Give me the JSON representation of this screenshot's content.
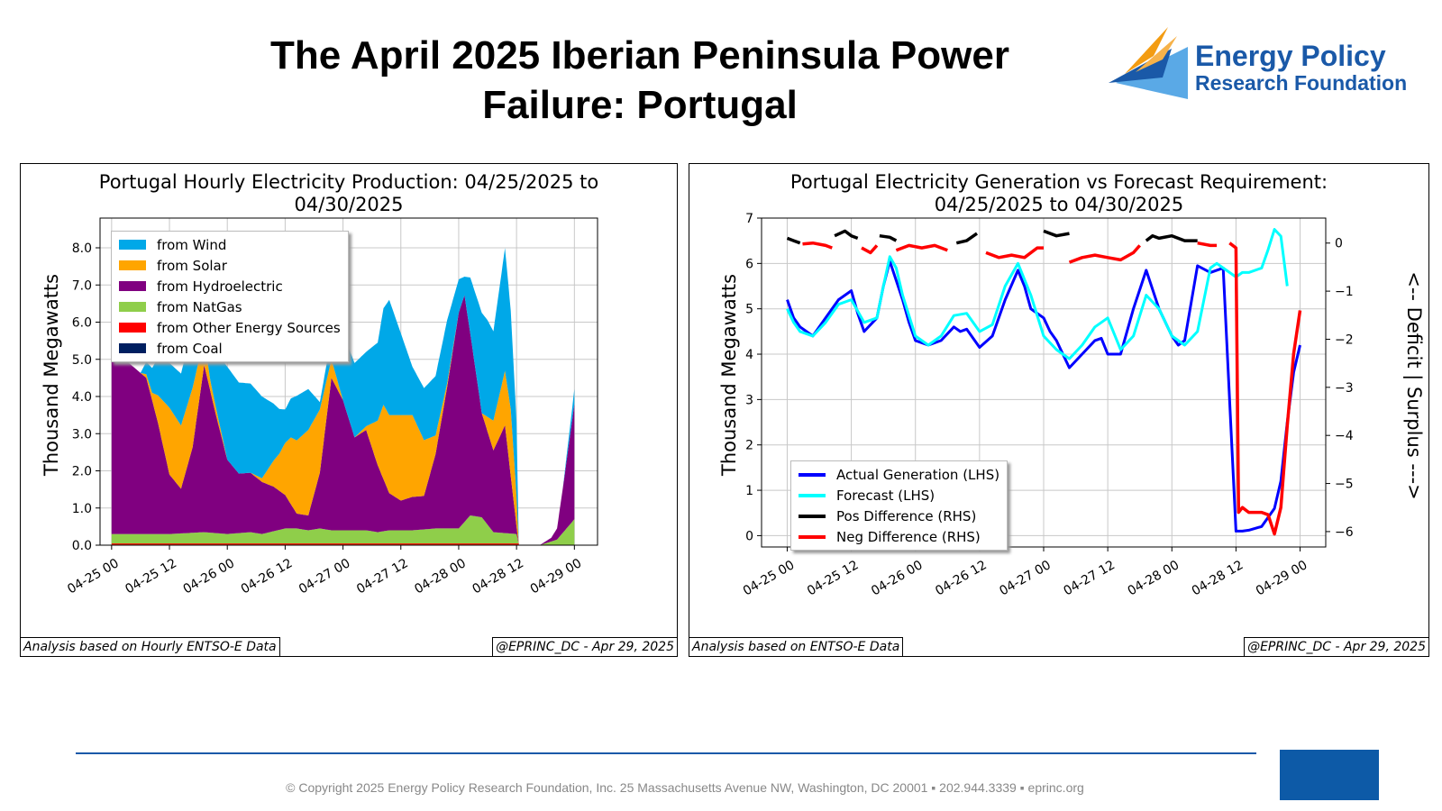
{
  "page": {
    "title_line1": "The April 2025 Iberian Peninsula Power",
    "title_line2": "Failure: Portugal",
    "logo_line1": "Energy Policy",
    "logo_line2": "Research Foundation",
    "copyright": "© Copyright 2025 Energy Policy Research Foundation, Inc. 25 Massachusetts Avenue NW, Washington, DC 20001 ▪ 202.944.3339 ▪ eprinc.org",
    "colors": {
      "brand_blue": "#1a59a8",
      "brand_orange": "#f39c12",
      "brand_light_blue": "#5aa9e6"
    }
  },
  "chart_data": [
    {
      "type": "area",
      "stacked": true,
      "title_line1": "Portugal Hourly Electricity Production: 04/25/2025 to",
      "title_line2": "04/30/2025",
      "ylabel": "Thousand Megawatts",
      "xlabel": "",
      "ylim": [
        0,
        8.8
      ],
      "xlim": [
        -0.1,
        4.2
      ],
      "yticks": [
        0.0,
        1.0,
        2.0,
        3.0,
        4.0,
        5.0,
        6.0,
        7.0,
        8.0
      ],
      "ytick_labels": [
        "0.0",
        "1.0",
        "2.0",
        "3.0",
        "4.0",
        "5.0",
        "6.0",
        "7.0",
        "8.0"
      ],
      "xticks": [
        0,
        0.5,
        1,
        1.5,
        2,
        2.5,
        3,
        3.5,
        4
      ],
      "xtick_labels": [
        "04-25 00",
        "04-25 12",
        "04-26 00",
        "04-26 12",
        "04-27 00",
        "04-27 12",
        "04-28 00",
        "04-28 12",
        "04-29 00"
      ],
      "x_unit": "days since 04-25 00",
      "grid": true,
      "legend_position": "top-left",
      "footer_left": "Analysis based on Hourly ENTSO-E Data",
      "footer_right": "@EPRINC_DC - Apr 29, 2025",
      "series": [
        {
          "name": "from NatGas",
          "color": "#8fce4a",
          "x": [
            0,
            0.5,
            0.8,
            1.0,
            1.2,
            1.3,
            1.5,
            1.6,
            1.7,
            1.8,
            1.9,
            2.0,
            2.2,
            2.3,
            2.4,
            2.6,
            2.8,
            3.0,
            3.1,
            3.2,
            3.3,
            3.5,
            3.52,
            3.7,
            3.85,
            4.0
          ],
          "y": [
            0.3,
            0.3,
            0.35,
            0.3,
            0.35,
            0.3,
            0.45,
            0.45,
            0.4,
            0.45,
            0.4,
            0.4,
            0.4,
            0.35,
            0.4,
            0.4,
            0.45,
            0.45,
            0.8,
            0.75,
            0.35,
            0.3,
            0.0,
            0.0,
            0.15,
            0.7
          ]
        },
        {
          "name": "from Hydroelectric",
          "color": "#800080",
          "x": [
            0,
            0.3,
            0.4,
            0.5,
            0.6,
            0.7,
            0.8,
            0.9,
            1.0,
            1.1,
            1.2,
            1.3,
            1.4,
            1.5,
            1.6,
            1.7,
            1.8,
            1.9,
            2.0,
            2.1,
            2.2,
            2.3,
            2.4,
            2.5,
            2.6,
            2.7,
            2.8,
            2.9,
            3.0,
            3.05,
            3.1,
            3.2,
            3.3,
            3.4,
            3.5,
            3.52,
            3.7,
            3.75,
            3.8,
            3.85,
            3.9,
            4.0
          ],
          "y": [
            5.0,
            4.2,
            3.0,
            1.6,
            1.2,
            2.3,
            4.5,
            3.2,
            2.0,
            1.6,
            1.6,
            1.4,
            1.2,
            0.9,
            0.4,
            0.4,
            1.5,
            4.1,
            3.5,
            2.5,
            2.7,
            1.8,
            1.0,
            0.8,
            0.9,
            0.9,
            2.0,
            3.8,
            5.8,
            6.1,
            4.9,
            2.8,
            2.2,
            2.9,
            0.2,
            0.0,
            0.0,
            0.05,
            0.1,
            0.3,
            1.2,
            3.1
          ]
        },
        {
          "name": "from Solar",
          "color": "#ffa500",
          "x": [
            0,
            0.25,
            0.35,
            0.5,
            0.7,
            0.85,
            1.0,
            1.1,
            1.2,
            1.3,
            1.45,
            1.55,
            1.7,
            1.8,
            1.9,
            2.0,
            2.1,
            2.2,
            2.3,
            2.35,
            2.5,
            2.6,
            2.7,
            2.8,
            2.9,
            3.0,
            3.2,
            3.3,
            3.45,
            3.5,
            3.52,
            4.0
          ],
          "y": [
            0,
            0,
            0.2,
            1.8,
            1.6,
            0.3,
            0,
            0,
            0,
            0.1,
            1.0,
            1.8,
            2.3,
            1.7,
            0.5,
            0,
            0,
            0.1,
            1.2,
            2.0,
            2.3,
            2.2,
            1.5,
            0.5,
            0.1,
            0,
            0,
            0.8,
            1.8,
            0.8,
            0,
            0
          ]
        },
        {
          "name": "from Wind",
          "color": "#00a8e8",
          "x": [
            0,
            0.25,
            0.4,
            0.5,
            0.7,
            0.8,
            0.9,
            1.0,
            1.2,
            1.3,
            1.45,
            1.5,
            1.6,
            1.7,
            1.8,
            1.9,
            2.0,
            2.1,
            2.2,
            2.3,
            2.4,
            2.5,
            2.6,
            2.7,
            2.8,
            2.9,
            3.0,
            3.05,
            3.1,
            3.2,
            3.25,
            3.3,
            3.4,
            3.5,
            3.52,
            3.7,
            3.85,
            3.9,
            4.0
          ],
          "y": [
            0,
            0,
            1.0,
            1.2,
            1.6,
            1.2,
            1.5,
            2.5,
            2.4,
            2.2,
            1.2,
            0.9,
            1.2,
            1.1,
            0.2,
            0.6,
            1.8,
            2.0,
            2.0,
            2.1,
            3.1,
            2.2,
            1.3,
            1.4,
            1.6,
            1.7,
            0.9,
            0.5,
            1.5,
            2.7,
            2.6,
            2.4,
            3.3,
            2.0,
            0,
            0,
            0,
            0,
            0.4
          ]
        },
        {
          "name": "from Other Energy Sources",
          "color": "#ff0000",
          "x": [
            0,
            3.52
          ],
          "y": [
            0.03,
            0.03
          ]
        },
        {
          "name": "from Coal",
          "color": "#001f60",
          "x": [
            0,
            4.0
          ],
          "y": [
            0,
            0
          ]
        }
      ]
    },
    {
      "type": "line",
      "title_line1": "Portugal Electricity Generation vs Forecast Requirement:",
      "title_line2": "04/25/2025 to 04/30/2025",
      "ylabel": "Thousand Megawatts",
      "y2label": "<-- Deficit | Surplus --->",
      "xlabel": "",
      "ylim": [
        -0.25,
        7.0
      ],
      "y2lim": [
        -6.32,
        0.52
      ],
      "xlim": [
        -0.2,
        4.2
      ],
      "yticks": [
        0,
        1,
        2,
        3,
        4,
        5,
        6,
        7
      ],
      "y2ticks": [
        0,
        -1,
        -2,
        -3,
        -4,
        -5,
        -6
      ],
      "xticks": [
        0,
        0.5,
        1,
        1.5,
        2,
        2.5,
        3,
        3.5,
        4
      ],
      "xtick_labels": [
        "04-25 00",
        "04-25 12",
        "04-26 00",
        "04-26 12",
        "04-27 00",
        "04-27 12",
        "04-28 00",
        "04-28 12",
        "04-29 00"
      ],
      "x_unit": "days since 04-25 00",
      "grid": true,
      "legend_position": "bottom-left",
      "footer_left": "Analysis based on ENTSO-E Data",
      "footer_right": "@EPRINC_DC - Apr 29, 2025",
      "series": [
        {
          "name": "Actual Generation (LHS)",
          "color": "#0000ff",
          "axis": "left",
          "x": [
            0,
            0.05,
            0.1,
            0.2,
            0.3,
            0.4,
            0.5,
            0.55,
            0.6,
            0.7,
            0.75,
            0.8,
            0.9,
            0.95,
            1.0,
            1.1,
            1.2,
            1.3,
            1.35,
            1.4,
            1.5,
            1.6,
            1.7,
            1.8,
            1.85,
            1.9,
            2.0,
            2.05,
            2.1,
            2.2,
            2.3,
            2.4,
            2.45,
            2.5,
            2.6,
            2.7,
            2.8,
            2.9,
            3.0,
            3.05,
            3.1,
            3.2,
            3.3,
            3.4,
            3.5,
            3.55,
            3.6,
            3.7,
            3.75,
            3.8,
            3.85,
            3.9,
            3.95,
            4.0
          ],
          "y": [
            5.2,
            4.8,
            4.6,
            4.4,
            4.8,
            5.2,
            5.4,
            4.9,
            4.5,
            4.8,
            5.5,
            6.05,
            5.2,
            4.7,
            4.3,
            4.2,
            4.3,
            4.6,
            4.5,
            4.55,
            4.15,
            4.4,
            5.2,
            5.85,
            5.5,
            5.0,
            4.8,
            4.5,
            4.3,
            3.7,
            4.0,
            4.3,
            4.35,
            4.0,
            4.0,
            5.0,
            5.85,
            5.0,
            4.4,
            4.2,
            4.3,
            5.95,
            5.8,
            5.9,
            0.1,
            0.1,
            0.12,
            0.2,
            0.4,
            0.6,
            1.2,
            2.5,
            3.6,
            4.2
          ]
        },
        {
          "name": "Forecast (LHS)",
          "color": "#00ffff",
          "axis": "left",
          "x": [
            0,
            0.05,
            0.1,
            0.2,
            0.3,
            0.4,
            0.5,
            0.6,
            0.7,
            0.75,
            0.8,
            0.85,
            0.9,
            1.0,
            1.1,
            1.2,
            1.3,
            1.4,
            1.5,
            1.6,
            1.7,
            1.8,
            1.9,
            2.0,
            2.1,
            2.2,
            2.3,
            2.4,
            2.5,
            2.6,
            2.7,
            2.8,
            2.9,
            3.0,
            3.1,
            3.2,
            3.3,
            3.35,
            3.4,
            3.5,
            3.55,
            3.6,
            3.7,
            3.75,
            3.8,
            3.85,
            3.9
          ],
          "y": [
            5.0,
            4.7,
            4.5,
            4.4,
            4.7,
            5.1,
            5.2,
            4.7,
            4.8,
            5.5,
            6.15,
            5.9,
            5.3,
            4.4,
            4.2,
            4.4,
            4.85,
            4.9,
            4.5,
            4.65,
            5.5,
            6.0,
            5.3,
            4.4,
            4.1,
            3.9,
            4.2,
            4.6,
            4.8,
            4.1,
            4.4,
            5.3,
            5.0,
            4.4,
            4.2,
            4.5,
            5.9,
            6.0,
            5.9,
            5.7,
            5.8,
            5.8,
            5.9,
            6.3,
            6.75,
            6.6,
            5.5
          ]
        },
        {
          "name": "Pos Difference (RHS)",
          "color": "#000000",
          "axis": "right",
          "segments": [
            {
              "x": [
                0,
                0.05,
                0.1
              ],
              "y": [
                0.1,
                0.05,
                0.0
              ]
            },
            {
              "x": [
                0.37,
                0.45,
                0.5,
                0.55
              ],
              "y": [
                0.15,
                0.25,
                0.15,
                0.1
              ]
            },
            {
              "x": [
                0.72,
                0.8,
                0.85
              ],
              "y": [
                0.15,
                0.12,
                0.05
              ]
            },
            {
              "x": [
                1.32,
                1.4,
                1.48
              ],
              "y": [
                0.0,
                0.05,
                0.2
              ]
            },
            {
              "x": [
                2.0,
                2.1,
                2.2
              ],
              "y": [
                0.25,
                0.15,
                0.2
              ]
            },
            {
              "x": [
                2.8,
                2.85,
                2.9,
                3.0,
                3.1,
                3.2
              ],
              "y": [
                0.05,
                0.15,
                0.1,
                0.15,
                0.05,
                0.05
              ]
            }
          ]
        },
        {
          "name": "Neg Difference (RHS)",
          "color": "#ff0000",
          "axis": "right",
          "segments": [
            {
              "x": [
                0.12,
                0.2,
                0.3,
                0.35
              ],
              "y": [
                -0.02,
                0.0,
                -0.05,
                -0.1
              ]
            },
            {
              "x": [
                0.58,
                0.65,
                0.7
              ],
              "y": [
                -0.1,
                -0.2,
                -0.05
              ]
            },
            {
              "x": [
                0.85,
                0.95,
                1.05,
                1.15,
                1.25
              ],
              "y": [
                -0.15,
                -0.05,
                -0.1,
                -0.05,
                -0.15
              ]
            },
            {
              "x": [
                1.55,
                1.65,
                1.75,
                1.85,
                1.95,
                2.0
              ],
              "y": [
                -0.2,
                -0.3,
                -0.25,
                -0.3,
                -0.1,
                -0.1
              ]
            },
            {
              "x": [
                2.2,
                2.3,
                2.4,
                2.5,
                2.6,
                2.7,
                2.75
              ],
              "y": [
                -0.4,
                -0.3,
                -0.25,
                -0.3,
                -0.35,
                -0.2,
                -0.05
              ]
            },
            {
              "x": [
                3.2,
                3.3,
                3.35
              ],
              "y": [
                0.0,
                -0.05,
                -0.05
              ]
            },
            {
              "x": [
                3.45,
                3.5,
                3.52,
                3.55,
                3.6,
                3.7,
                3.75,
                3.8,
                3.85,
                3.9,
                3.95,
                4.0
              ],
              "y": [
                0.0,
                -0.1,
                -5.6,
                -5.5,
                -5.6,
                -5.6,
                -5.65,
                -6.05,
                -5.5,
                -3.8,
                -2.3,
                -1.4
              ]
            }
          ]
        }
      ]
    }
  ]
}
